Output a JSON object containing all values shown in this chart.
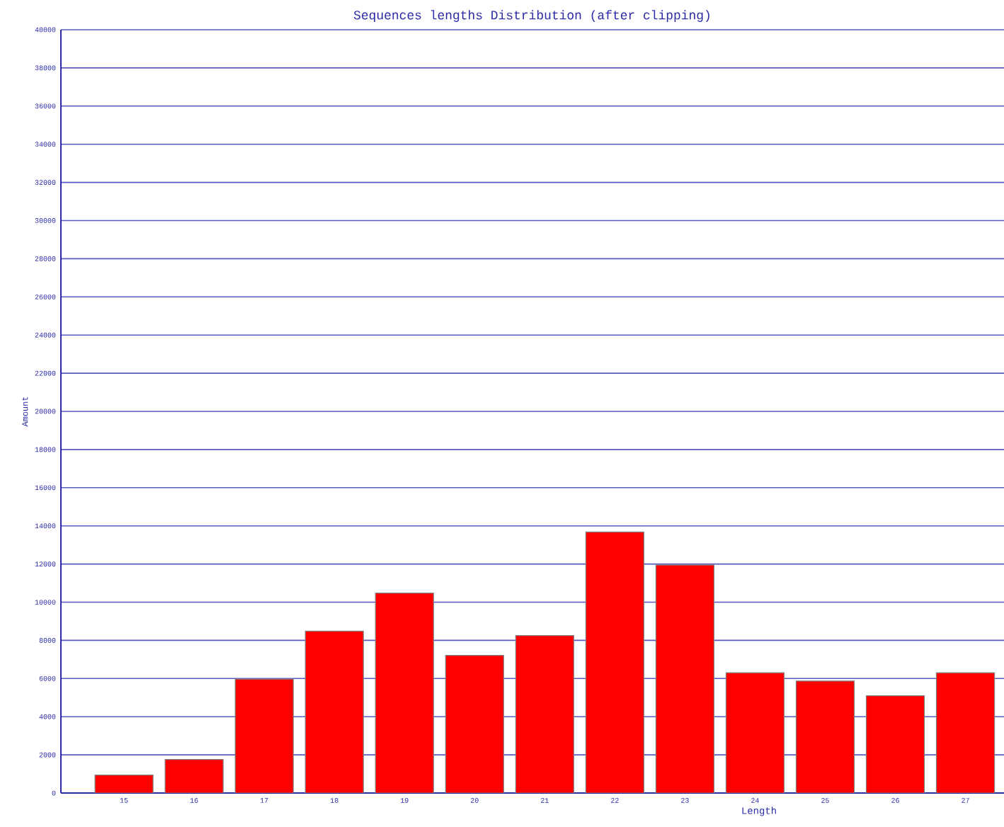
{
  "chart_data": {
    "type": "bar",
    "title": "Sequences lengths Distribution (after clipping)",
    "xlabel": "Length",
    "ylabel": "Amount",
    "categories": [
      "15",
      "16",
      "17",
      "18",
      "19",
      "20",
      "21",
      "22",
      "23",
      "24",
      "25",
      "26",
      "27"
    ],
    "values": [
      940,
      1760,
      5970,
      8480,
      10480,
      7210,
      8250,
      13680,
      11950,
      6300,
      5870,
      5100,
      6300
    ],
    "color": "#ff0000",
    "ylim": [
      0,
      40000
    ],
    "yticks": [
      0,
      2000,
      4000,
      6000,
      8000,
      10000,
      12000,
      14000,
      16000,
      18000,
      20000,
      22000,
      24000,
      26000,
      28000,
      30000,
      32000,
      34000,
      36000,
      38000,
      40000
    ],
    "grid": "y"
  }
}
